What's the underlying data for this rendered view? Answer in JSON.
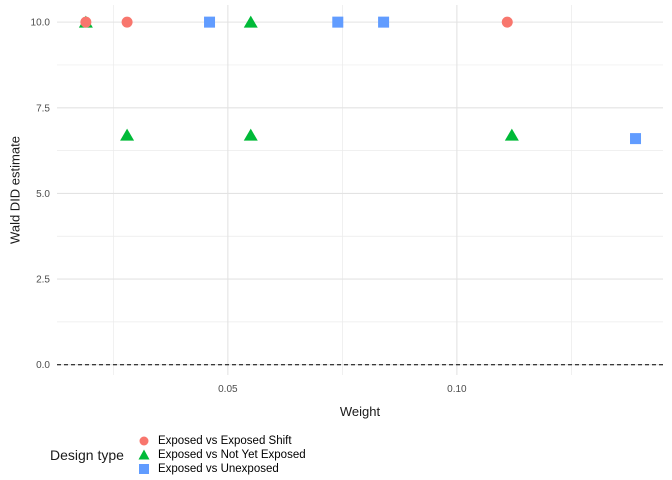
{
  "chart_data": {
    "type": "scatter",
    "title": "",
    "xlabel": "Weight",
    "ylabel": "Wald DID estimate",
    "legend_title": "Design type",
    "legend_position": "bottom",
    "grid": true,
    "xlim": [
      0.0127,
      0.145
    ],
    "ylim": [
      -0.3,
      10.5
    ],
    "x_ticks": {
      "values": [
        0.05,
        0.1
      ],
      "labels": [
        "0.05",
        "0.10"
      ]
    },
    "x_minor": [
      0.025,
      0.075,
      0.125
    ],
    "y_ticks": {
      "values": [
        0.0,
        2.5,
        5.0,
        7.5,
        10.0
      ],
      "labels": [
        "0.0",
        "2.5",
        "5.0",
        "7.5",
        "10.0"
      ]
    },
    "y_minor": [
      1.25,
      3.75,
      6.25,
      8.75
    ],
    "reference_line": {
      "y": 0.0,
      "style": "dashed",
      "color": "#000000"
    },
    "series": [
      {
        "name": "Exposed vs Exposed Shift",
        "marker": "circle",
        "color": "#F8766D",
        "points": [
          {
            "x": 0.019,
            "y": 10.0
          },
          {
            "x": 0.028,
            "y": 10.0
          },
          {
            "x": 0.111,
            "y": 10.0
          }
        ]
      },
      {
        "name": "Exposed vs Not Yet Exposed",
        "marker": "triangle",
        "color": "#00BA38",
        "points": [
          {
            "x": 0.019,
            "y": 10.0
          },
          {
            "x": 0.055,
            "y": 10.0
          },
          {
            "x": 0.028,
            "y": 6.7
          },
          {
            "x": 0.055,
            "y": 6.7
          },
          {
            "x": 0.112,
            "y": 6.7
          }
        ]
      },
      {
        "name": "Exposed vs Unexposed",
        "marker": "square",
        "color": "#619CFF",
        "points": [
          {
            "x": 0.046,
            "y": 10.0
          },
          {
            "x": 0.074,
            "y": 10.0
          },
          {
            "x": 0.084,
            "y": 10.0
          },
          {
            "x": 0.139,
            "y": 6.6
          }
        ]
      }
    ],
    "draw_order": [
      1,
      2,
      0
    ]
  },
  "colors": {
    "background": "#FFFFFF",
    "grid_major": "#E3E3E3",
    "grid_minor": "#EBEBEB",
    "tick_label": "#4D4D4D",
    "axis_title": "#1A1A1A",
    "legend_text": "#000000"
  }
}
